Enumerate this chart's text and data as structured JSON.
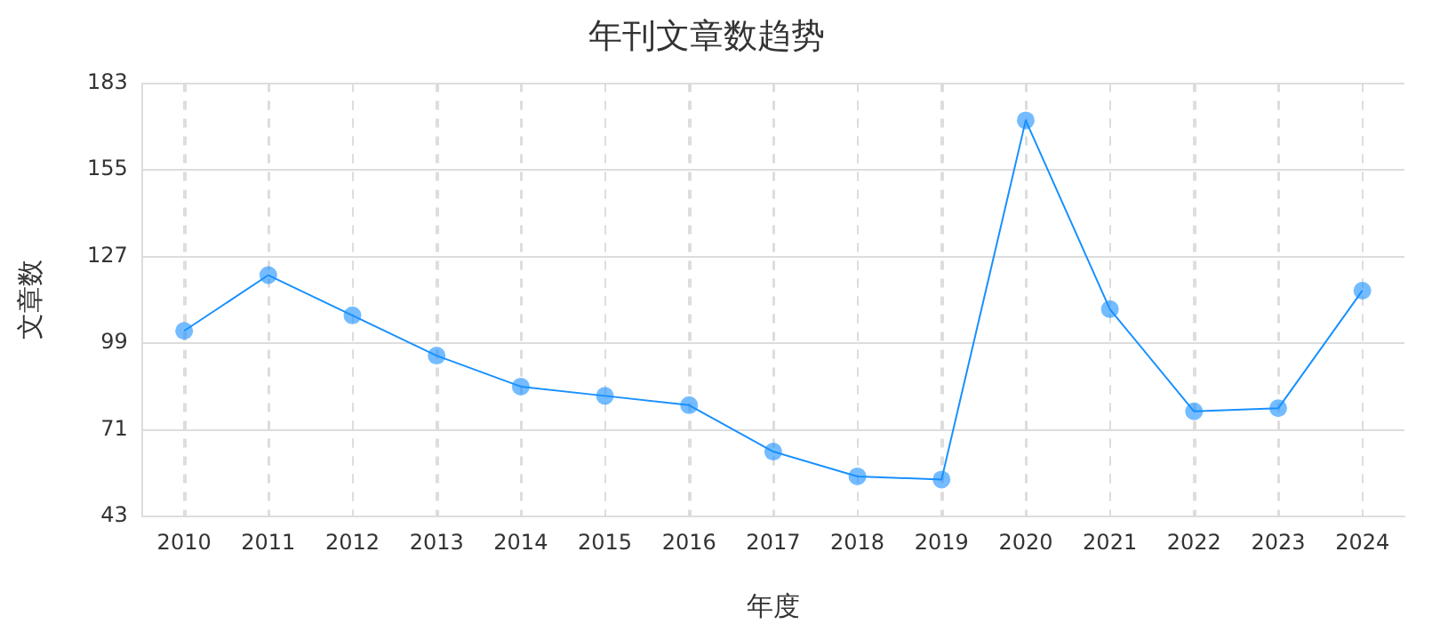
{
  "chart_data": {
    "type": "line",
    "title": "年刊文章数趋势",
    "xlabel": "年度",
    "ylabel": "文章数",
    "categories": [
      "2010",
      "2011",
      "2012",
      "2013",
      "2014",
      "2015",
      "2016",
      "2017",
      "2018",
      "2019",
      "2020",
      "2021",
      "2022",
      "2023",
      "2024"
    ],
    "series": [
      {
        "color": "#1890ff",
        "values": [
          103,
          121,
          108,
          95,
          85,
          82,
          79,
          64,
          56,
          55,
          171,
          110,
          77,
          78,
          116
        ]
      }
    ],
    "ylim": [
      43,
      183
    ],
    "yticks": [
      43,
      71,
      99,
      127,
      155,
      183
    ],
    "grid": true,
    "marker": "circle",
    "line_style": "solid",
    "legend": false
  }
}
